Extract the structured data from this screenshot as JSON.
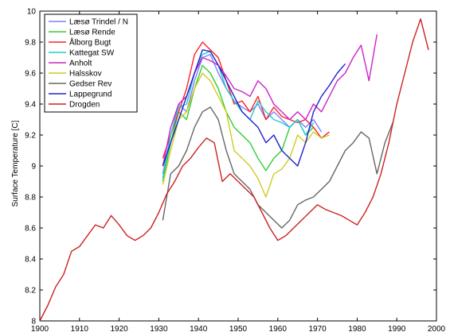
{
  "chart_data": {
    "type": "line",
    "title": "",
    "xlabel": "",
    "ylabel": "Surface Temperature [C]",
    "xlim": [
      1900,
      2000
    ],
    "ylim": [
      8,
      10
    ],
    "xticks": [
      1900,
      1910,
      1920,
      1930,
      1940,
      1950,
      1960,
      1970,
      1980,
      1990,
      2000
    ],
    "yticks": [
      8,
      8.2,
      8.4,
      8.6,
      8.8,
      9,
      9.2,
      9.4,
      9.6,
      9.8,
      10
    ],
    "ytick_labels": [
      "8",
      "8.2",
      "8.4",
      "8.6",
      "8.8",
      "9",
      "9.2",
      "9.4",
      "9.6",
      "9.8",
      "10"
    ],
    "grid": false,
    "legend_position": "top-left",
    "series": [
      {
        "name": "Læsø Trindel / N",
        "color": "#7f7fff",
        "x": [
          1931,
          1933,
          1935,
          1937,
          1939,
          1941,
          1943,
          1945,
          1947,
          1949,
          1951,
          1953,
          1955,
          1957,
          1959,
          1961,
          1963,
          1965,
          1967,
          1969,
          1971
        ],
        "y": [
          8.95,
          9.2,
          9.4,
          9.35,
          9.55,
          9.7,
          9.72,
          9.6,
          9.5,
          9.42,
          9.38,
          9.35,
          9.4,
          9.3,
          9.35,
          9.3,
          9.25,
          9.3,
          9.25,
          9.3,
          9.22
        ]
      },
      {
        "name": "Læsø Rende",
        "color": "#33cc33",
        "x": [
          1931,
          1933,
          1935,
          1937,
          1939,
          1941,
          1943,
          1945,
          1947,
          1949,
          1951,
          1953,
          1955,
          1957,
          1959,
          1961,
          1963,
          1965,
          1967,
          1969
        ],
        "y": [
          8.9,
          9.15,
          9.35,
          9.3,
          9.5,
          9.65,
          9.6,
          9.5,
          9.35,
          9.25,
          9.2,
          9.15,
          9.05,
          8.97,
          9.05,
          9.1,
          9.25,
          9.3,
          9.2,
          9.25
        ]
      },
      {
        "name": "Ålborg Bugt",
        "color": "#ff2222",
        "x": [
          1931,
          1933,
          1935,
          1937,
          1939,
          1941,
          1943,
          1945,
          1947,
          1949,
          1951,
          1953,
          1955,
          1957,
          1959,
          1961,
          1963,
          1965,
          1967,
          1969,
          1971,
          1973
        ],
        "y": [
          9.05,
          9.2,
          9.35,
          9.5,
          9.72,
          9.8,
          9.75,
          9.7,
          9.55,
          9.4,
          9.42,
          9.35,
          9.45,
          9.3,
          9.38,
          9.32,
          9.3,
          9.28,
          9.3,
          9.25,
          9.18,
          9.22
        ]
      },
      {
        "name": "Kattegat SW",
        "color": "#22cccc",
        "x": [
          1931,
          1933,
          1935,
          1937,
          1939,
          1941,
          1943,
          1945,
          1947,
          1949,
          1951,
          1953,
          1955,
          1957,
          1959,
          1961,
          1963,
          1965,
          1967,
          1969
        ],
        "y": [
          8.92,
          9.2,
          9.38,
          9.4,
          9.6,
          9.72,
          9.74,
          9.65,
          9.5,
          9.42,
          9.35,
          9.3,
          9.42,
          9.35,
          9.3,
          9.28,
          9.25,
          9.3,
          9.2,
          9.28
        ]
      },
      {
        "name": "Anholt",
        "color": "#cc22cc",
        "x": [
          1931,
          1933,
          1935,
          1937,
          1939,
          1941,
          1943,
          1945,
          1947,
          1949,
          1951,
          1953,
          1955,
          1957,
          1959,
          1961,
          1963,
          1965,
          1967,
          1969,
          1971,
          1973,
          1975,
          1977,
          1979,
          1981,
          1983,
          1985
        ],
        "y": [
          9.0,
          9.25,
          9.4,
          9.45,
          9.6,
          9.7,
          9.68,
          9.65,
          9.58,
          9.5,
          9.48,
          9.45,
          9.55,
          9.5,
          9.4,
          9.35,
          9.3,
          9.35,
          9.3,
          9.4,
          9.35,
          9.45,
          9.55,
          9.6,
          9.7,
          9.78,
          9.55,
          9.85
        ]
      },
      {
        "name": "Halsskov",
        "color": "#cccc22",
        "x": [
          1931,
          1933,
          1935,
          1937,
          1939,
          1941,
          1943,
          1945,
          1947,
          1949,
          1951,
          1953,
          1955,
          1957,
          1959,
          1961,
          1963,
          1965,
          1967,
          1969,
          1971,
          1973
        ],
        "y": [
          8.88,
          9.1,
          9.3,
          9.35,
          9.5,
          9.6,
          9.55,
          9.45,
          9.35,
          9.1,
          9.05,
          9.0,
          8.92,
          8.8,
          8.95,
          8.98,
          9.05,
          9.2,
          9.15,
          9.22,
          9.18,
          9.2
        ]
      },
      {
        "name": "Gedser Rev",
        "color": "#666666",
        "x": [
          1931,
          1933,
          1935,
          1937,
          1939,
          1941,
          1943,
          1945,
          1947,
          1949,
          1951,
          1953,
          1955,
          1957,
          1959,
          1961,
          1963,
          1965,
          1967,
          1969,
          1971,
          1973,
          1975,
          1977,
          1979,
          1981,
          1983,
          1985,
          1987,
          1989
        ],
        "y": [
          8.65,
          8.95,
          9.0,
          9.1,
          9.25,
          9.35,
          9.38,
          9.3,
          9.1,
          8.95,
          8.9,
          8.85,
          8.75,
          8.7,
          8.65,
          8.6,
          8.65,
          8.75,
          8.78,
          8.8,
          8.85,
          8.9,
          9.0,
          9.1,
          9.15,
          9.22,
          9.18,
          8.95,
          9.15,
          9.28
        ]
      },
      {
        "name": "Lappegrund",
        "color": "#2222cc",
        "x": [
          1931,
          1933,
          1935,
          1937,
          1939,
          1941,
          1943,
          1945,
          1947,
          1949,
          1951,
          1953,
          1955,
          1957,
          1959,
          1961,
          1963,
          1965,
          1967,
          1969,
          1971,
          1973,
          1975,
          1977
        ],
        "y": [
          9.0,
          9.15,
          9.3,
          9.45,
          9.6,
          9.75,
          9.74,
          9.65,
          9.55,
          9.45,
          9.35,
          9.3,
          9.25,
          9.15,
          9.2,
          9.1,
          9.05,
          9.0,
          9.15,
          9.35,
          9.45,
          9.52,
          9.6,
          9.66
        ]
      },
      {
        "name": "Drogden",
        "color": "#cc2222",
        "x": [
          1900,
          1902,
          1904,
          1906,
          1908,
          1910,
          1912,
          1914,
          1916,
          1918,
          1920,
          1922,
          1924,
          1926,
          1928,
          1930,
          1932,
          1934,
          1936,
          1938,
          1940,
          1942,
          1944,
          1946,
          1948,
          1950,
          1952,
          1954,
          1956,
          1958,
          1960,
          1962,
          1964,
          1966,
          1968,
          1970,
          1972,
          1974,
          1976,
          1978,
          1980,
          1982,
          1984,
          1986,
          1988,
          1990,
          1992,
          1994,
          1996,
          1998
        ],
        "y": [
          8.0,
          8.1,
          8.22,
          8.3,
          8.45,
          8.48,
          8.55,
          8.62,
          8.6,
          8.68,
          8.62,
          8.55,
          8.52,
          8.55,
          8.6,
          8.7,
          8.82,
          8.9,
          9.0,
          9.05,
          9.12,
          9.18,
          9.15,
          8.9,
          8.95,
          8.9,
          8.85,
          8.8,
          8.7,
          8.6,
          8.52,
          8.55,
          8.6,
          8.65,
          8.7,
          8.75,
          8.72,
          8.7,
          8.68,
          8.65,
          8.62,
          8.7,
          8.8,
          8.95,
          9.15,
          9.4,
          9.6,
          9.8,
          9.95,
          9.75
        ]
      }
    ]
  }
}
